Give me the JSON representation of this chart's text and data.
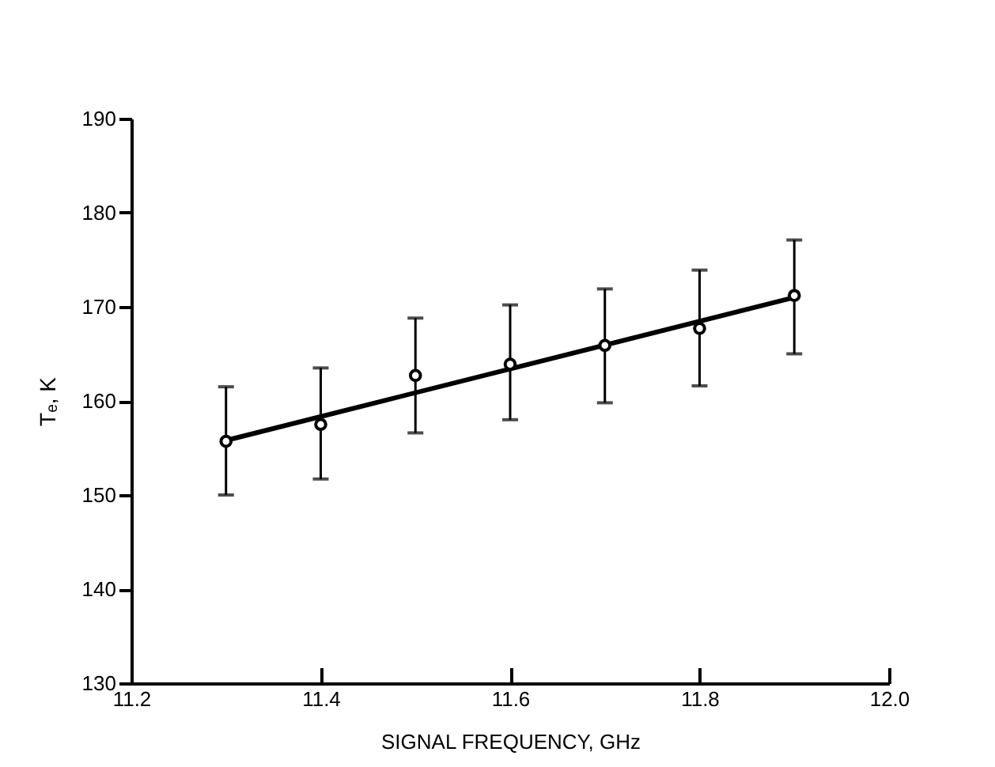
{
  "chart_data": {
    "type": "scatter",
    "xlabel": "SIGNAL  FREQUENCY,   GHz",
    "ylabel": "Tₑ,   K",
    "xlim": [
      11.2,
      12.0
    ],
    "ylim": [
      130,
      190
    ],
    "xticks": [
      {
        "value": 11.2,
        "label": "11.2"
      },
      {
        "value": 11.4,
        "label": "11.4"
      },
      {
        "value": 11.6,
        "label": "11.6"
      },
      {
        "value": 11.8,
        "label": "11.8"
      },
      {
        "value": 12.0,
        "label": "12.0"
      }
    ],
    "yticks": [
      130,
      140,
      150,
      160,
      170,
      180,
      190
    ],
    "series": [
      {
        "type": "line",
        "color": "#000000",
        "line_style": "solid",
        "marker": "none",
        "x": [
          11.3,
          11.9
        ],
        "values": [
          155.8,
          171.0
        ]
      },
      {
        "color": "#000000",
        "marker": "circle",
        "x": [
          11.3,
          11.4,
          11.5,
          11.6,
          11.7,
          11.8,
          11.9
        ],
        "values": [
          155.7,
          157.5,
          162.7,
          163.9,
          165.9,
          167.7,
          171.2
        ],
        "errors": [
          [
            150.0,
            161.5
          ],
          [
            151.7,
            163.5
          ],
          [
            156.6,
            168.8
          ],
          [
            158.0,
            170.2
          ],
          [
            159.8,
            171.9
          ],
          [
            161.6,
            173.9
          ],
          [
            165.0,
            177.1
          ]
        ]
      }
    ]
  }
}
